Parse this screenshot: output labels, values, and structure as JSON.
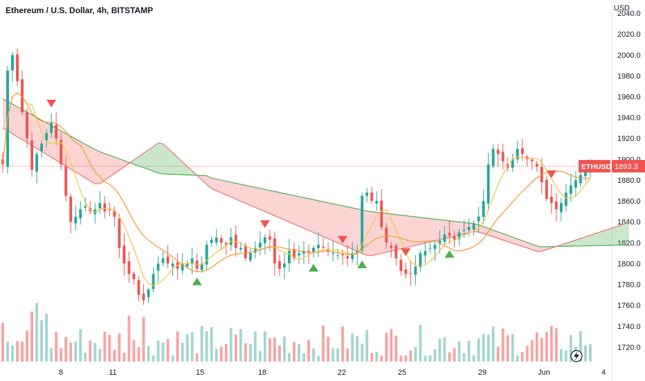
{
  "title": "Ethereum / U.S. Dollar, 4h, BITSTAMP",
  "currency_label": "USD",
  "price_label": {
    "symbol": "ETHUSD",
    "value": "1893.3"
  },
  "colors": {
    "up": "#26a69a",
    "down": "#ef5350",
    "vol_up": "#a5d6d0",
    "vol_down": "#f5a5a3",
    "ma_fast": "#f2c94c",
    "ma_mid": "#f39c3c",
    "cloud_bull": "rgba(102,187,106,0.35)",
    "cloud_bear": "rgba(239,83,80,0.25)",
    "line_green": "#4caf50",
    "line_red": "#e57373"
  },
  "chart_data": {
    "type": "candlestick",
    "title": "Ethereum / U.S. Dollar, 4h, BITSTAMP",
    "ylabel": "USD",
    "ylim": [
      1706,
      2046
    ],
    "y_ticks": [
      "2040.0",
      "2020.0",
      "2000.0",
      "1980.0",
      "1960.0",
      "1940.0",
      "1920.0",
      "1900.0",
      "1880.0",
      "1860.0",
      "1840.0",
      "1820.0",
      "1800.0",
      "1780.0",
      "1760.0",
      "1740.0",
      "1720.0"
    ],
    "x_ticks": [
      "8",
      "11",
      "15",
      "18",
      "22",
      "25",
      "29",
      "Jun",
      "4"
    ],
    "current_price": 1893.3,
    "signals": [
      {
        "dir": "down",
        "i": 10
      },
      {
        "dir": "up",
        "i": 40
      },
      {
        "dir": "down",
        "i": 54
      },
      {
        "dir": "up",
        "i": 64
      },
      {
        "dir": "down",
        "i": 70
      },
      {
        "dir": "up",
        "i": 74
      },
      {
        "dir": "down",
        "i": 83
      },
      {
        "dir": "up",
        "i": 92
      },
      {
        "dir": "down",
        "i": 113
      }
    ]
  },
  "tv_logo": "tradingview-logo-icon"
}
